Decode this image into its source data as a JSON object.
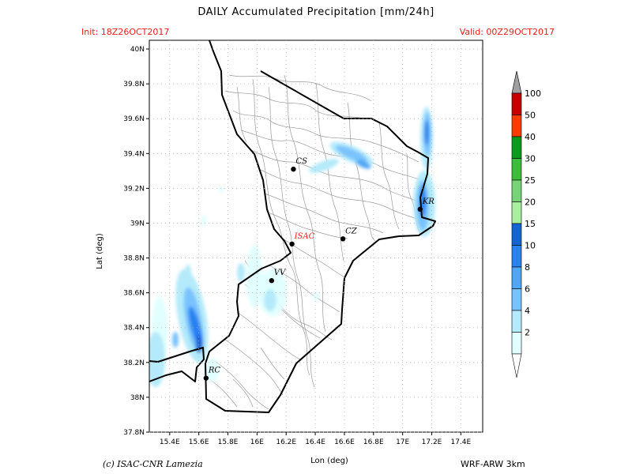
{
  "title": "DAILY Accumulated Precipitation [mm/24h]",
  "init": "Init: 18Z26OCT2017",
  "valid": "Valid: 00Z29OCT2017",
  "credit": "(c) ISAC-CNR Lamezia",
  "model": "WRF-ARW 3km",
  "axes": {
    "xlabel": "Lon (deg)",
    "ylabel": "Lat (deg)",
    "lon_ticks": [
      "15.4E",
      "15.6E",
      "15.8E",
      "16E",
      "16.2E",
      "16.4E",
      "16.6E",
      "16.8E",
      "17E",
      "17.2E",
      "17.4E"
    ],
    "lat_ticks": [
      "40N",
      "39.8N",
      "39.6N",
      "39.4N",
      "39.2N",
      "39N",
      "38.8N",
      "38.6N",
      "38.4N",
      "38.2N",
      "38N",
      "37.8N"
    ],
    "lon_range": [
      15.26,
      17.55
    ],
    "lat_range": [
      37.8,
      40.05
    ]
  },
  "cities": [
    {
      "code": "CS",
      "lon": 16.25,
      "lat": 39.31,
      "highlight": false
    },
    {
      "code": "ISAC",
      "lon": 16.24,
      "lat": 38.88,
      "highlight": true
    },
    {
      "code": "CZ",
      "lon": 16.59,
      "lat": 38.91,
      "highlight": false
    },
    {
      "code": "KR",
      "lon": 17.12,
      "lat": 39.08,
      "highlight": false
    },
    {
      "code": "VV",
      "lon": 16.1,
      "lat": 38.67,
      "highlight": false
    },
    {
      "code": "RC",
      "lon": 15.65,
      "lat": 38.11,
      "highlight": false
    }
  ],
  "legend": {
    "labels": [
      "100",
      "50",
      "40",
      "30",
      "25",
      "20",
      "15",
      "10",
      "8",
      "6",
      "4",
      "2"
    ],
    "colors": [
      "#c40000",
      "#ff3c00",
      "#0a9a1e",
      "#3cbe3c",
      "#78d278",
      "#aaeea0",
      "#1464d2",
      "#2882f0",
      "#50a5f5",
      "#78c3ff",
      "#b4eafa",
      "#e1ffff"
    ],
    "top_color": "#a0a0a0",
    "bottom_color": "#ffffff"
  },
  "highlight_color": "#e8221b"
}
